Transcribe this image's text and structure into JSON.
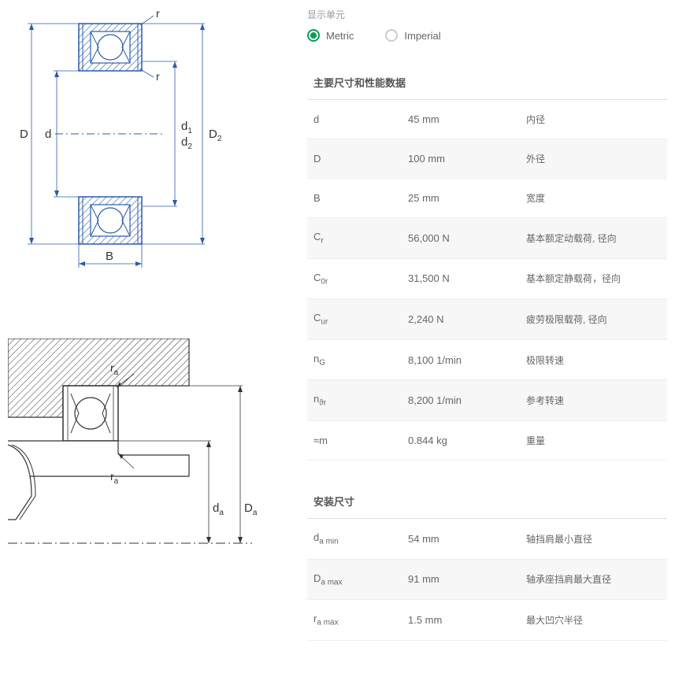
{
  "unitLabel": "显示单元",
  "radios": {
    "metric": "Metric",
    "imperial": "Imperial"
  },
  "diagram1": {
    "labels": {
      "D": "D",
      "d": "d",
      "d1": "d",
      "d1sub": "1",
      "d2": "d",
      "d2sub": "2",
      "D2": "D",
      "D2sub": "2",
      "r1": "r",
      "r2": "r",
      "B": "B"
    }
  },
  "diagram2": {
    "labels": {
      "ra1": "r",
      "ra1sub": "a",
      "ra2": "r",
      "ra2sub": "a",
      "da": "d",
      "dasub": "a",
      "Da": "D",
      "Dasub": "a"
    }
  },
  "sections": [
    {
      "title": "主要尺寸和性能数据",
      "rows": [
        {
          "sym": "d",
          "sub": "",
          "val": "45 mm",
          "desc": "内径"
        },
        {
          "sym": "D",
          "sub": "",
          "val": "100 mm",
          "desc": "外径"
        },
        {
          "sym": "B",
          "sub": "",
          "val": "25 mm",
          "desc": "宽度"
        },
        {
          "sym": "C",
          "sub": "r",
          "val": "56,000 N",
          "desc": "基本额定动载荷, 径向"
        },
        {
          "sym": "C",
          "sub": "0r",
          "val": "31,500 N",
          "desc": "基本额定静载荷，径向"
        },
        {
          "sym": "C",
          "sub": "ur",
          "val": "2,240 N",
          "desc": "疲劳极限载荷, 径向"
        },
        {
          "sym": "n",
          "sub": "G",
          "val": "8,100 1/min",
          "desc": "极限转速"
        },
        {
          "sym": "n",
          "sub": "ϑr",
          "val": "8,200 1/min",
          "desc": "参考转速"
        },
        {
          "sym": "≈m",
          "sub": "",
          "val": "0.844 kg",
          "desc": "重量"
        }
      ]
    },
    {
      "title": "安装尺寸",
      "rows": [
        {
          "sym": "d",
          "sub": "a min",
          "val": "54 mm",
          "desc": "轴挡肩最小直径"
        },
        {
          "sym": "D",
          "sub": "a max",
          "val": "91 mm",
          "desc": "轴承座挡肩最大直径"
        },
        {
          "sym": "r",
          "sub": "a max",
          "val": "1.5 mm",
          "desc": "最大凹穴半径"
        }
      ]
    }
  ]
}
